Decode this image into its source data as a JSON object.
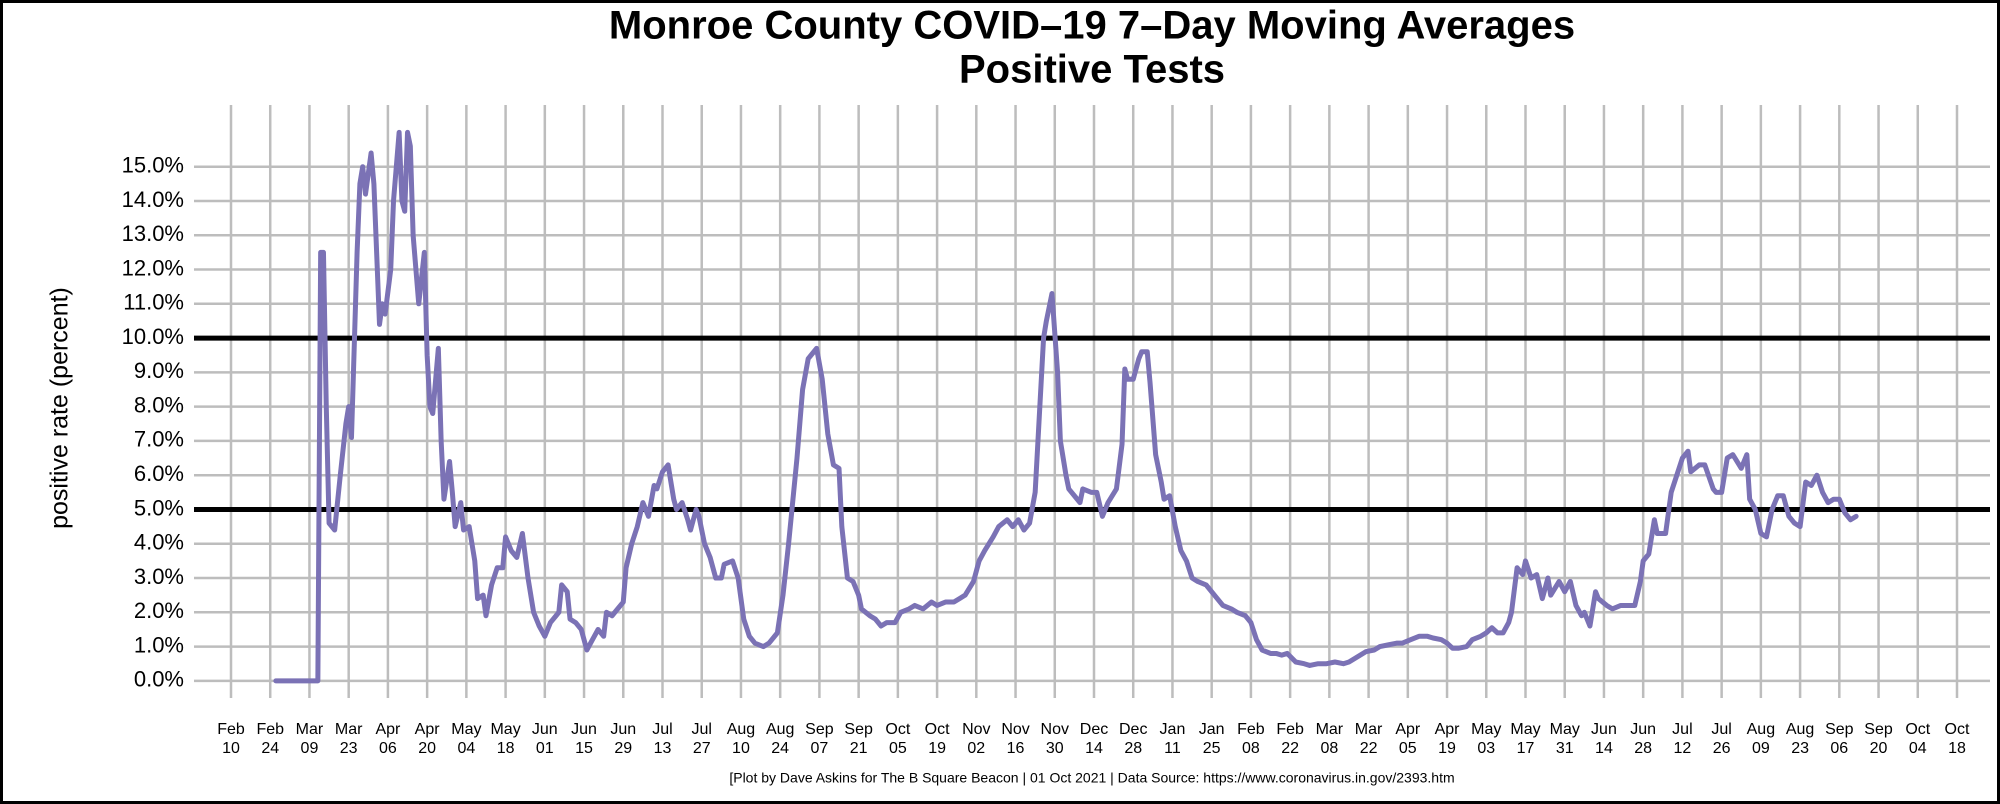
{
  "chart_data": {
    "type": "line",
    "title": "Monroe County COVID–19 7–Day Moving Averages",
    "subtitle": "Positive Tests",
    "y_label": "positive rate (percent)",
    "footer": "[Plot by Dave Askins for The B Square Beacon | 01 Oct 2021 | Data Source: https://www.coronavirus.in.gov/2393.htm",
    "color": "#7b72b5",
    "grid": true,
    "reference_lines": [
      5,
      10
    ],
    "ylim": [
      -0.5,
      16.8
    ],
    "yticks": [
      {
        "value": 0,
        "label": "0.0%"
      },
      {
        "value": 1,
        "label": "1.0%"
      },
      {
        "value": 2,
        "label": "2.0%"
      },
      {
        "value": 3,
        "label": "3.0%"
      },
      {
        "value": 4,
        "label": "4.0%"
      },
      {
        "value": 5,
        "label": "5.0%"
      },
      {
        "value": 6,
        "label": "6.0%"
      },
      {
        "value": 7,
        "label": "7.0%"
      },
      {
        "value": 8,
        "label": "8.0%"
      },
      {
        "value": 9,
        "label": "9.0%"
      },
      {
        "value": 10,
        "label": "10.0%"
      },
      {
        "value": 11,
        "label": "11.0%"
      },
      {
        "value": 12,
        "label": "12.0%"
      },
      {
        "value": 13,
        "label": "13.0%"
      },
      {
        "value": 14,
        "label": "14.0%"
      },
      {
        "value": 15,
        "label": "15.0%"
      }
    ],
    "xticks": [
      "Feb 10",
      "Feb 24",
      "Mar 09",
      "Mar 23",
      "Apr 06",
      "Apr 20",
      "May 04",
      "May 18",
      "Jun 01",
      "Jun 15",
      "Jun 29",
      "Jul 13",
      "Jul 27",
      "Aug 10",
      "Aug 24",
      "Sep 07",
      "Sep 21",
      "Oct 05",
      "Oct 19",
      "Nov 02",
      "Nov 16",
      "Nov 30",
      "Dec 14",
      "Dec 28",
      "Jan 11",
      "Jan 25",
      "Feb 08",
      "Feb 22",
      "Mar 08",
      "Mar 22",
      "Apr 05",
      "Apr 19",
      "May 03",
      "May 17",
      "May 31",
      "Jun 14",
      "Jun 28",
      "Jul 12",
      "Jul 26",
      "Aug 09",
      "Aug 23",
      "Sep 06",
      "Sep 20",
      "Oct 04",
      "Oct 18"
    ],
    "x": [
      "Feb 26",
      "Mar 12",
      "Mar 13",
      "Mar 14",
      "Mar 15",
      "Mar 16",
      "Mar 18",
      "Mar 20",
      "Mar 22",
      "Mar 23",
      "Mar 24",
      "Mar 26",
      "Mar 27",
      "Mar 28",
      "Mar 29",
      "Mar 31",
      "Apr 01",
      "Apr 03",
      "Apr 04",
      "Apr 05",
      "Apr 07",
      "Apr 08",
      "Apr 10",
      "Apr 11",
      "Apr 12",
      "Apr 13",
      "Apr 14",
      "Apr 15",
      "Apr 17",
      "Apr 19",
      "Apr 20",
      "Apr 21",
      "Apr 22",
      "Apr 24",
      "Apr 25",
      "Apr 26",
      "Apr 28",
      "Apr 29",
      "Apr 30",
      "May 02",
      "May 03",
      "May 05",
      "May 07",
      "May 08",
      "May 10",
      "May 11",
      "May 13",
      "May 15",
      "May 17",
      "May 18",
      "May 20",
      "May 22",
      "May 24",
      "May 26",
      "May 28",
      "May 30",
      "Jun 01",
      "Jun 03",
      "Jun 05",
      "Jun 06",
      "Jun 07",
      "Jun 09",
      "Jun 10",
      "Jun 12",
      "Jun 14",
      "Jun 16",
      "Jun 18",
      "Jun 20",
      "Jun 22",
      "Jun 23",
      "Jun 25",
      "Jun 27",
      "Jun 29",
      "Jun 30",
      "Jul 02",
      "Jul 04",
      "Jul 06",
      "Jul 08",
      "Jul 10",
      "Jul 11",
      "Jul 13",
      "Jul 15",
      "Jul 17",
      "Jul 18",
      "Jul 20",
      "Jul 22",
      "Jul 23",
      "Jul 25",
      "Jul 26",
      "Jul 28",
      "Jul 30",
      "Aug 01",
      "Aug 03",
      "Aug 04",
      "Aug 07",
      "Aug 09",
      "Aug 11",
      "Aug 13",
      "Aug 15",
      "Aug 18",
      "Aug 20",
      "Aug 23",
      "Aug 25",
      "Aug 27",
      "Aug 30",
      "Aug 31",
      "Sep 01",
      "Sep 03",
      "Sep 04",
      "Sep 06",
      "Sep 08",
      "Sep 09",
      "Sep 10",
      "Sep 12",
      "Sep 14",
      "Sep 15",
      "Sep 17",
      "Sep 19",
      "Sep 21",
      "Sep 22",
      "Sep 25",
      "Sep 27",
      "Sep 29",
      "Oct 01",
      "Oct 04",
      "Oct 06",
      "Oct 09",
      "Oct 11",
      "Oct 14",
      "Oct 17",
      "Oct 19",
      "Oct 22",
      "Oct 25",
      "Oct 27",
      "Oct 29",
      "Nov 01",
      "Nov 03",
      "Nov 05",
      "Nov 08",
      "Nov 10",
      "Nov 13",
      "Nov 15",
      "Nov 17",
      "Nov 19",
      "Nov 21",
      "Nov 23",
      "Nov 26",
      "Nov 27",
      "Nov 29",
      "Dec 01",
      "Dec 02",
      "Dec 04",
      "Dec 05",
      "Dec 07",
      "Dec 09",
      "Dec 10",
      "Dec 13",
      "Dec 15",
      "Dec 17",
      "Dec 19",
      "Dec 22",
      "Dec 24",
      "Dec 25",
      "Dec 26",
      "Dec 28",
      "Dec 30",
      "Dec 31",
      "Jan 02",
      "Jan 03",
      "Jan 05",
      "Jan 07",
      "Jan 08",
      "Jan 10",
      "Jan 12",
      "Jan 14",
      "Jan 16",
      "Jan 18",
      "Jan 20",
      "Jan 23",
      "Jan 26",
      "Jan 29",
      "Feb 01",
      "Feb 03",
      "Feb 06",
      "Feb 08",
      "Feb 10",
      "Feb 12",
      "Feb 15",
      "Feb 17",
      "Feb 19",
      "Feb 21",
      "Feb 24",
      "Feb 27",
      "Mar 01",
      "Mar 04",
      "Mar 07",
      "Mar 10",
      "Mar 13",
      "Mar 15",
      "Mar 18",
      "Mar 21",
      "Mar 24",
      "Mar 26",
      "Mar 29",
      "Apr 01",
      "Apr 03",
      "Apr 06",
      "Apr 09",
      "Apr 12",
      "Apr 14",
      "Apr 17",
      "Apr 19",
      "Apr 21",
      "Apr 23",
      "Apr 26",
      "Apr 28",
      "May 01",
      "May 03",
      "May 05",
      "May 07",
      "May 09",
      "May 11",
      "May 12",
      "May 14",
      "May 16",
      "May 17",
      "May 19",
      "May 21",
      "May 23",
      "May 25",
      "May 26",
      "May 29",
      "May 31",
      "Jun 02",
      "Jun 04",
      "Jun 06",
      "Jun 07",
      "Jun 09",
      "Jun 11",
      "Jun 12",
      "Jun 15",
      "Jun 17",
      "Jun 20",
      "Jun 22",
      "Jun 25",
      "Jun 27",
      "Jun 28",
      "Jun 30",
      "Jul 02",
      "Jul 03",
      "Jul 06",
      "Jul 08",
      "Jul 10",
      "Jul 12",
      "Jul 14",
      "Jul 15",
      "Jul 18",
      "Jul 20",
      "Jul 23",
      "Jul 24",
      "Jul 26",
      "Jul 28",
      "Jul 30",
      "Aug 02",
      "Aug 04",
      "Aug 05",
      "Aug 07",
      "Aug 09",
      "Aug 11",
      "Aug 13",
      "Aug 15",
      "Aug 17",
      "Aug 19",
      "Aug 21",
      "Aug 23",
      "Aug 25",
      "Aug 27",
      "Aug 29",
      "Aug 31",
      "Sep 02",
      "Sep 04",
      "Sep 06",
      "Sep 08",
      "Sep 10",
      "Sep 12"
    ],
    "values": [
      0,
      0,
      12.5,
      12.5,
      8,
      4.6,
      4.4,
      6,
      7.5,
      8,
      7.1,
      12.5,
      14.5,
      15,
      14.2,
      15.4,
      14.5,
      10.4,
      11,
      10.7,
      12,
      14,
      16,
      14,
      13.7,
      16,
      15.6,
      13,
      11,
      12.5,
      9.5,
      8,
      7.8,
      9.7,
      7,
      5.3,
      6.4,
      5.5,
      4.5,
      5.2,
      4.4,
      4.5,
      3.5,
      2.4,
      2.5,
      1.9,
      2.8,
      3.3,
      3.3,
      4.2,
      3.8,
      3.6,
      4.3,
      3.0,
      2.0,
      1.6,
      1.3,
      1.7,
      1.9,
      2.0,
      2.8,
      2.6,
      1.8,
      1.7,
      1.5,
      0.9,
      1.2,
      1.5,
      1.3,
      2.0,
      1.9,
      2.1,
      2.3,
      3.3,
      4.0,
      4.5,
      5.2,
      4.8,
      5.7,
      5.6,
      6.1,
      6.3,
      5.3,
      5.0,
      5.2,
      4.7,
      4.4,
      5.0,
      4.8,
      4.0,
      3.6,
      3.0,
      3.0,
      3.4,
      3.5,
      3.0,
      1.8,
      1.3,
      1.1,
      1.0,
      1.1,
      1.4,
      2.5,
      4.0,
      6.5,
      7.5,
      8.5,
      9.4,
      9.5,
      9.7,
      8.8,
      8.0,
      7.2,
      6.3,
      6.2,
      4.5,
      3.0,
      2.9,
      2.5,
      2.1,
      1.9,
      1.8,
      1.6,
      1.7,
      1.7,
      2.0,
      2.1,
      2.2,
      2.1,
      2.3,
      2.2,
      2.3,
      2.3,
      2.4,
      2.5,
      2.9,
      3.5,
      3.8,
      4.2,
      4.5,
      4.7,
      4.5,
      4.7,
      4.4,
      4.6,
      5.5,
      10,
      10.5,
      11.3,
      9.0,
      7.0,
      6.0,
      5.6,
      5.4,
      5.2,
      5.6,
      5.5,
      5.5,
      4.8,
      5.2,
      5.6,
      6.9,
      9.1,
      8.8,
      8.8,
      9.4,
      9.6,
      9.6,
      8.7,
      6.6,
      5.8,
      5.3,
      5.4,
      4.5,
      3.8,
      3.5,
      3.0,
      2.9,
      2.8,
      2.5,
      2.2,
      2.1,
      2.0,
      1.9,
      1.7,
      1.2,
      0.9,
      0.8,
      0.8,
      0.75,
      0.8,
      0.55,
      0.5,
      0.45,
      0.5,
      0.5,
      0.55,
      0.5,
      0.55,
      0.7,
      0.85,
      0.9,
      1.0,
      1.05,
      1.1,
      1.1,
      1.2,
      1.3,
      1.3,
      1.25,
      1.2,
      1.1,
      0.95,
      0.95,
      1.0,
      1.2,
      1.3,
      1.4,
      1.55,
      1.4,
      1.4,
      1.7,
      2.0,
      3.3,
      3.1,
      3.5,
      3.0,
      3.1,
      2.4,
      3.0,
      2.5,
      2.9,
      2.6,
      2.9,
      2.2,
      1.9,
      2.0,
      1.6,
      2.6,
      2.4,
      2.2,
      2.1,
      2.2,
      2.2,
      2.2,
      2.9,
      3.5,
      3.7,
      4.7,
      4.3,
      4.3,
      5.5,
      6.0,
      6.5,
      6.7,
      6.1,
      6.3,
      6.3,
      5.6,
      5.5,
      5.5,
      6.5,
      6.6,
      6.2,
      6.6,
      5.3,
      5.0,
      4.3,
      4.2,
      5.0,
      5.4,
      5.4,
      4.8,
      4.6,
      4.5,
      5.8,
      5.7,
      6.0,
      5.5,
      5.2,
      5.3,
      5.3,
      4.9,
      4.7,
      4.8
    ]
  }
}
